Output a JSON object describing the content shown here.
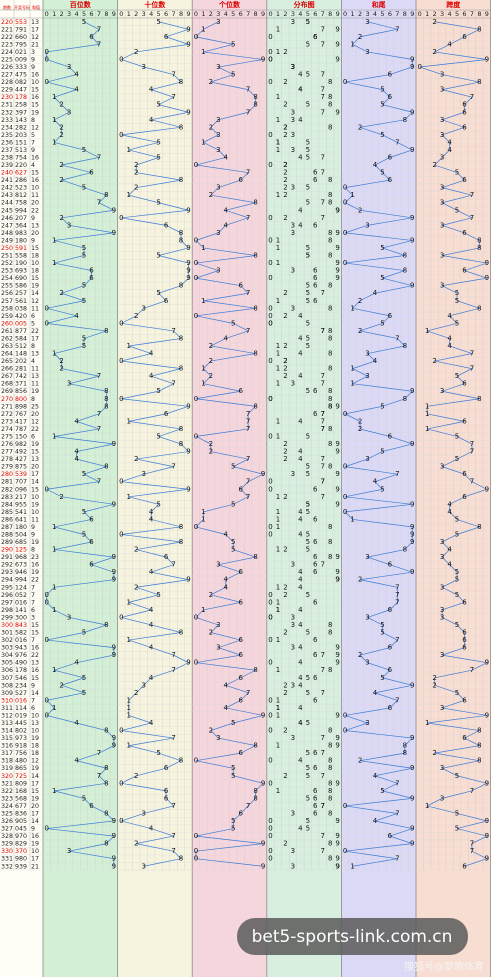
{
  "chart_data": {
    "type": "trend-table",
    "columns": [
      "期数",
      "开奖号码",
      "和值"
    ],
    "sections": [
      "百位数",
      "十位数",
      "个位数",
      "分布图",
      "和尾",
      "跨度"
    ],
    "digits": [
      0,
      1,
      2,
      3,
      4,
      5,
      6,
      7,
      8,
      9
    ],
    "rows": [
      [
        "220",
        "553",
        13,
        [
          5,
          5,
          3
        ],
        3,
        2
      ],
      [
        "221",
        "791",
        17,
        [
          7,
          9,
          1
        ],
        7,
        8
      ],
      [
        "222",
        "660",
        12,
        [
          6,
          6,
          0
        ],
        2,
        6
      ],
      [
        "223",
        "795",
        21,
        [
          7,
          9,
          5
        ],
        1,
        4
      ],
      [
        "224",
        "021",
        3,
        [
          0,
          2,
          1
        ],
        3,
        2
      ],
      [
        "225",
        "009",
        9,
        [
          0,
          0,
          9
        ],
        9,
        9
      ],
      [
        "226",
        "333",
        9,
        [
          3,
          3,
          3
        ],
        9,
        0
      ],
      [
        "227",
        "475",
        16,
        [
          4,
          7,
          5
        ],
        6,
        3
      ],
      [
        "228",
        "082",
        10,
        [
          0,
          8,
          2
        ],
        0,
        8
      ],
      [
        "229",
        "447",
        15,
        [
          4,
          4,
          7
        ],
        5,
        3
      ],
      [
        "230",
        "178",
        16,
        [
          1,
          7,
          8
        ],
        6,
        7
      ],
      [
        "231",
        "258",
        15,
        [
          2,
          5,
          8
        ],
        5,
        6
      ],
      [
        "232",
        "397",
        19,
        [
          3,
          9,
          7
        ],
        9,
        6
      ],
      [
        "233",
        "143",
        8,
        [
          1,
          4,
          3
        ],
        8,
        3
      ],
      [
        "234",
        "282",
        12,
        [
          2,
          8,
          2
        ],
        2,
        6
      ],
      [
        "235",
        "203",
        5,
        [
          2,
          0,
          3
        ],
        5,
        3
      ],
      [
        "236",
        "151",
        7,
        [
          1,
          5,
          1
        ],
        7,
        4
      ],
      [
        "237",
        "513",
        9,
        [
          5,
          1,
          3
        ],
        9,
        4
      ],
      [
        "238",
        "754",
        16,
        [
          7,
          5,
          4
        ],
        6,
        3
      ],
      [
        "239",
        "220",
        4,
        [
          2,
          2,
          0
        ],
        4,
        2
      ],
      [
        "240",
        "627",
        15,
        [
          6,
          2,
          7
        ],
        5,
        5
      ],
      [
        "241",
        "286",
        16,
        [
          2,
          8,
          6
        ],
        6,
        6
      ],
      [
        "242",
        "523",
        10,
        [
          5,
          2,
          3
        ],
        0,
        3
      ],
      [
        "243",
        "812",
        11,
        [
          8,
          1,
          2
        ],
        1,
        7
      ],
      [
        "244",
        "758",
        20,
        [
          7,
          5,
          8
        ],
        0,
        3
      ],
      [
        "245",
        "994",
        22,
        [
          9,
          9,
          4
        ],
        2,
        5
      ],
      [
        "246",
        "207",
        9,
        [
          2,
          0,
          7
        ],
        9,
        7
      ],
      [
        "247",
        "364",
        13,
        [
          3,
          6,
          4
        ],
        3,
        3
      ],
      [
        "248",
        "983",
        20,
        [
          9,
          8,
          3
        ],
        0,
        6
      ],
      [
        "249",
        "180",
        9,
        [
          1,
          8,
          0
        ],
        9,
        8
      ],
      [
        "250",
        "591",
        15,
        [
          5,
          9,
          1
        ],
        5,
        8
      ],
      [
        "251",
        "558",
        18,
        [
          5,
          5,
          8
        ],
        8,
        3
      ],
      [
        "252",
        "190",
        10,
        [
          1,
          9,
          0
        ],
        0,
        9
      ],
      [
        "253",
        "693",
        18,
        [
          6,
          9,
          3
        ],
        8,
        6
      ],
      [
        "254",
        "690",
        15,
        [
          6,
          9,
          0
        ],
        5,
        9
      ],
      [
        "255",
        "586",
        19,
        [
          5,
          8,
          6
        ],
        9,
        3
      ],
      [
        "256",
        "257",
        14,
        [
          2,
          5,
          7
        ],
        4,
        5
      ],
      [
        "257",
        "561",
        12,
        [
          5,
          6,
          1
        ],
        2,
        5
      ],
      [
        "258",
        "038",
        11,
        [
          0,
          3,
          8
        ],
        1,
        8
      ],
      [
        "259",
        "420",
        6,
        [
          4,
          2,
          0
        ],
        6,
        4
      ],
      [
        "260",
        "005",
        5,
        [
          0,
          0,
          5
        ],
        5,
        5
      ],
      [
        "261",
        "877",
        22,
        [
          8,
          7,
          7
        ],
        2,
        1
      ],
      [
        "262",
        "584",
        17,
        [
          5,
          8,
          4
        ],
        7,
        4
      ],
      [
        "263",
        "512",
        8,
        [
          5,
          1,
          2
        ],
        8,
        4
      ],
      [
        "264",
        "148",
        13,
        [
          1,
          4,
          8
        ],
        3,
        7
      ],
      [
        "265",
        "202",
        4,
        [
          2,
          0,
          2
        ],
        4,
        2
      ],
      [
        "266",
        "281",
        11,
        [
          2,
          8,
          1
        ],
        1,
        7
      ],
      [
        "267",
        "742",
        13,
        [
          7,
          4,
          2
        ],
        3,
        5
      ],
      [
        "268",
        "371",
        11,
        [
          3,
          7,
          1
        ],
        1,
        6
      ],
      [
        "269",
        "856",
        19,
        [
          8,
          5,
          6
        ],
        9,
        3
      ],
      [
        "270",
        "800",
        8,
        [
          8,
          0,
          0
        ],
        8,
        8
      ],
      [
        "271",
        "898",
        25,
        [
          8,
          9,
          8
        ],
        5,
        1
      ],
      [
        "272",
        "767",
        20,
        [
          7,
          6,
          7
        ],
        0,
        1
      ],
      [
        "273",
        "417",
        12,
        [
          4,
          1,
          7
        ],
        2,
        6
      ],
      [
        "274",
        "787",
        22,
        [
          7,
          8,
          7
        ],
        2,
        1
      ],
      [
        "275",
        "150",
        6,
        [
          1,
          5,
          0
        ],
        6,
        5
      ],
      [
        "276",
        "982",
        19,
        [
          9,
          8,
          2
        ],
        9,
        7
      ],
      [
        "277",
        "492",
        15,
        [
          4,
          9,
          2
        ],
        5,
        7
      ],
      [
        "278",
        "427",
        13,
        [
          4,
          2,
          7
        ],
        3,
        5
      ],
      [
        "279",
        "875",
        20,
        [
          8,
          7,
          5
        ],
        0,
        3
      ],
      [
        "280",
        "539",
        17,
        [
          5,
          3,
          9
        ],
        7,
        6
      ],
      [
        "281",
        "707",
        14,
        [
          7,
          0,
          7
        ],
        4,
        7
      ],
      [
        "282",
        "096",
        15,
        [
          0,
          9,
          6
        ],
        5,
        9
      ],
      [
        "283",
        "217",
        10,
        [
          2,
          1,
          7
        ],
        0,
        6
      ],
      [
        "284",
        "955",
        19,
        [
          9,
          5,
          5
        ],
        9,
        4
      ],
      [
        "285",
        "541",
        10,
        [
          5,
          4,
          1
        ],
        0,
        4
      ],
      [
        "286",
        "641",
        11,
        [
          6,
          4,
          1
        ],
        1,
        5
      ],
      [
        "287",
        "180",
        9,
        [
          1,
          8,
          0
        ],
        9,
        8
      ],
      [
        "288",
        "504",
        9,
        [
          5,
          0,
          4
        ],
        9,
        5
      ],
      [
        "289",
        "685",
        19,
        [
          6,
          8,
          5
        ],
        9,
        3
      ],
      [
        "290",
        "125",
        8,
        [
          1,
          2,
          5
        ],
        8,
        4
      ],
      [
        "291",
        "968",
        23,
        [
          9,
          6,
          8
        ],
        3,
        3
      ],
      [
        "292",
        "673",
        16,
        [
          6,
          7,
          3
        ],
        6,
        4
      ],
      [
        "293",
        "946",
        19,
        [
          9,
          4,
          6
        ],
        9,
        5
      ],
      [
        "294",
        "994",
        22,
        [
          9,
          9,
          4
        ],
        2,
        5
      ],
      [
        "295",
        "124",
        7,
        [
          1,
          2,
          4
        ],
        7,
        3
      ],
      [
        "296",
        "052",
        7,
        [
          0,
          5,
          2
        ],
        7,
        5
      ],
      [
        "297",
        "016",
        7,
        [
          0,
          1,
          6
        ],
        7,
        6
      ],
      [
        "298",
        "141",
        6,
        [
          1,
          4,
          1
        ],
        6,
        3
      ],
      [
        "299",
        "300",
        3,
        [
          3,
          0,
          0
        ],
        3,
        3
      ],
      [
        "300",
        "843",
        15,
        [
          8,
          4,
          3
        ],
        5,
        5
      ],
      [
        "301",
        "582",
        15,
        [
          5,
          8,
          2
        ],
        5,
        6
      ],
      [
        "302",
        "016",
        7,
        [
          0,
          1,
          6
        ],
        7,
        6
      ],
      [
        "303",
        "943",
        16,
        [
          9,
          4,
          3
        ],
        6,
        6
      ],
      [
        "304",
        "976",
        22,
        [
          9,
          7,
          6
        ],
        2,
        3
      ],
      [
        "305",
        "490",
        13,
        [
          4,
          9,
          0
        ],
        3,
        9
      ],
      [
        "306",
        "178",
        16,
        [
          1,
          7,
          8
        ],
        6,
        7
      ],
      [
        "307",
        "546",
        15,
        [
          5,
          4,
          6
        ],
        5,
        2
      ],
      [
        "308",
        "234",
        9,
        [
          2,
          3,
          4
        ],
        9,
        2
      ],
      [
        "309",
        "527",
        14,
        [
          5,
          2,
          7
        ],
        4,
        5
      ],
      [
        "310",
        "016",
        7,
        [
          0,
          1,
          6
        ],
        7,
        6
      ],
      [
        "311",
        "114",
        6,
        [
          1,
          1,
          4
        ],
        6,
        3
      ],
      [
        "312",
        "019",
        10,
        [
          0,
          1,
          9
        ],
        0,
        9
      ],
      [
        "313",
        "445",
        13,
        [
          4,
          4,
          5
        ],
        3,
        1
      ],
      [
        "314",
        "802",
        10,
        [
          8,
          0,
          2
        ],
        0,
        8
      ],
      [
        "315",
        "973",
        19,
        [
          9,
          7,
          3
        ],
        9,
        6
      ],
      [
        "316",
        "918",
        18,
        [
          9,
          1,
          8
        ],
        8,
        8
      ],
      [
        "317",
        "756",
        18,
        [
          7,
          5,
          6
        ],
        8,
        2
      ],
      [
        "318",
        "480",
        12,
        [
          4,
          8,
          0
        ],
        2,
        8
      ],
      [
        "319",
        "865",
        19,
        [
          8,
          6,
          5
        ],
        9,
        3
      ],
      [
        "320",
        "725",
        14,
        [
          7,
          2,
          5
        ],
        4,
        5
      ],
      [
        "321",
        "809",
        17,
        [
          8,
          0,
          9
        ],
        7,
        9
      ],
      [
        "322",
        "168",
        15,
        [
          1,
          6,
          8
        ],
        5,
        7
      ],
      [
        "323",
        "568",
        19,
        [
          5,
          6,
          8
        ],
        9,
        3
      ],
      [
        "324",
        "677",
        20,
        [
          6,
          7,
          7
        ],
        0,
        1
      ],
      [
        "325",
        "836",
        17,
        [
          8,
          3,
          6
        ],
        7,
        5
      ],
      [
        "326",
        "905",
        14,
        [
          9,
          0,
          5
        ],
        4,
        9
      ],
      [
        "327",
        "045",
        9,
        [
          0,
          4,
          5
        ],
        9,
        5
      ],
      [
        "328",
        "970",
        16,
        [
          9,
          7,
          0
        ],
        6,
        9
      ],
      [
        "329",
        "829",
        19,
        [
          8,
          2,
          9
        ],
        9,
        7
      ],
      [
        "330",
        "370",
        10,
        [
          3,
          7,
          0
        ],
        0,
        7
      ],
      [
        "331",
        "980",
        17,
        [
          9,
          8,
          0
        ],
        7,
        9
      ],
      [
        "332",
        "939",
        21,
        [
          9,
          3,
          9
        ],
        1,
        6
      ]
    ]
  },
  "watermark": "bet5-sports-link.com.cn",
  "credit": "搜狐号@梦歌体育"
}
